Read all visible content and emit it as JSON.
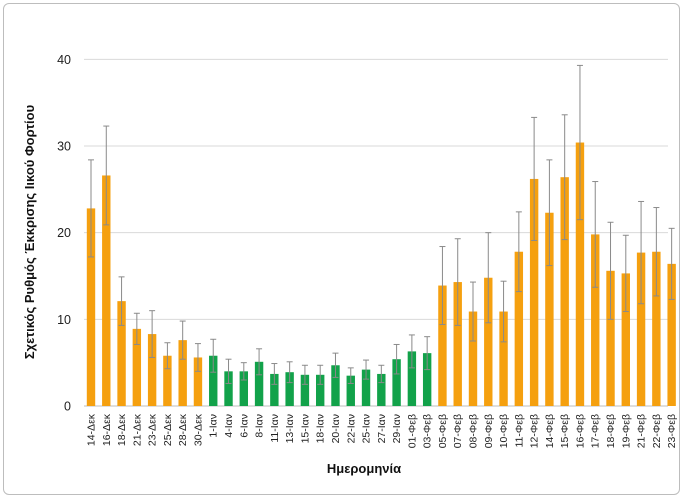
{
  "chart_data": {
    "type": "bar",
    "xlabel": "Ημερομηνία",
    "ylabel": "Σχετικός Ρυθμός Έκκρισης Ιικού Φορτίου",
    "ylim": [
      0,
      45
    ],
    "yticks": [
      0,
      10,
      20,
      30,
      40
    ],
    "grid": "horizontal",
    "legend": "none",
    "colors": {
      "orange": "#f5a00f",
      "green": "#12a24a",
      "error_bar": "#8a8a8a",
      "grid": "#d9d9d9"
    },
    "categories": [
      "14-Δεκ",
      "16-Δεκ",
      "18-Δεκ",
      "21-Δεκ",
      "23-Δεκ",
      "25-Δεκ",
      "28-Δεκ",
      "30-Δεκ",
      "1-Ιαν",
      "4-Ιαν",
      "6-Ιαν",
      "8-Ιαν",
      "11-Ιαν",
      "13-Ιαν",
      "15-Ιαν",
      "18-Ιαν",
      "20-Ιαν",
      "22-Ιαν",
      "25-Ιαν",
      "27-Ιαν",
      "29-Ιαν",
      "01-Φεβ",
      "03-Φεβ",
      "05-Φεβ",
      "07-Φεβ",
      "08-Φεβ",
      "09-Φεβ",
      "10-Φεβ",
      "11-Φεβ",
      "12-Φεβ",
      "14-Φεβ",
      "15-Φεβ",
      "16-Φεβ",
      "17-Φεβ",
      "18-Φεβ",
      "19-Φεβ",
      "21-Φεβ",
      "22-Φεβ",
      "23-Φεβ"
    ],
    "values": [
      22.8,
      26.6,
      12.1,
      8.9,
      8.3,
      5.8,
      7.6,
      5.6,
      5.8,
      4.0,
      4.0,
      5.1,
      3.7,
      3.9,
      3.6,
      3.6,
      4.7,
      3.5,
      4.2,
      3.7,
      5.4,
      6.3,
      6.1,
      13.9,
      14.3,
      10.9,
      14.8,
      10.9,
      17.8,
      26.2,
      22.3,
      26.4,
      30.4,
      19.8,
      15.6,
      15.3,
      17.7,
      17.8,
      16.4
    ],
    "error_plus": [
      5.6,
      5.7,
      2.8,
      1.8,
      2.7,
      1.5,
      2.2,
      1.6,
      1.9,
      1.4,
      1.0,
      1.5,
      1.2,
      1.2,
      1.1,
      1.1,
      1.4,
      0.9,
      1.1,
      1.0,
      1.7,
      1.9,
      1.9,
      4.5,
      5.0,
      3.4,
      5.2,
      3.5,
      4.6,
      7.1,
      6.1,
      7.2,
      8.9,
      6.1,
      5.6,
      4.4,
      5.9,
      5.1,
      4.1
    ],
    "error_minus": [
      5.6,
      5.7,
      2.8,
      1.8,
      2.7,
      1.5,
      2.2,
      1.6,
      1.9,
      1.4,
      1.0,
      1.5,
      1.2,
      1.2,
      1.1,
      1.1,
      1.4,
      0.9,
      1.1,
      1.0,
      1.7,
      1.9,
      1.9,
      4.5,
      5.0,
      3.4,
      5.2,
      3.5,
      4.6,
      7.1,
      6.1,
      7.2,
      8.9,
      6.1,
      5.6,
      4.4,
      5.9,
      5.1,
      4.1
    ],
    "bar_colors": [
      "orange",
      "orange",
      "orange",
      "orange",
      "orange",
      "orange",
      "orange",
      "orange",
      "green",
      "green",
      "green",
      "green",
      "green",
      "green",
      "green",
      "green",
      "green",
      "green",
      "green",
      "green",
      "green",
      "green",
      "green",
      "orange",
      "orange",
      "orange",
      "orange",
      "orange",
      "orange",
      "orange",
      "orange",
      "orange",
      "orange",
      "orange",
      "orange",
      "orange",
      "orange",
      "orange",
      "orange"
    ]
  }
}
